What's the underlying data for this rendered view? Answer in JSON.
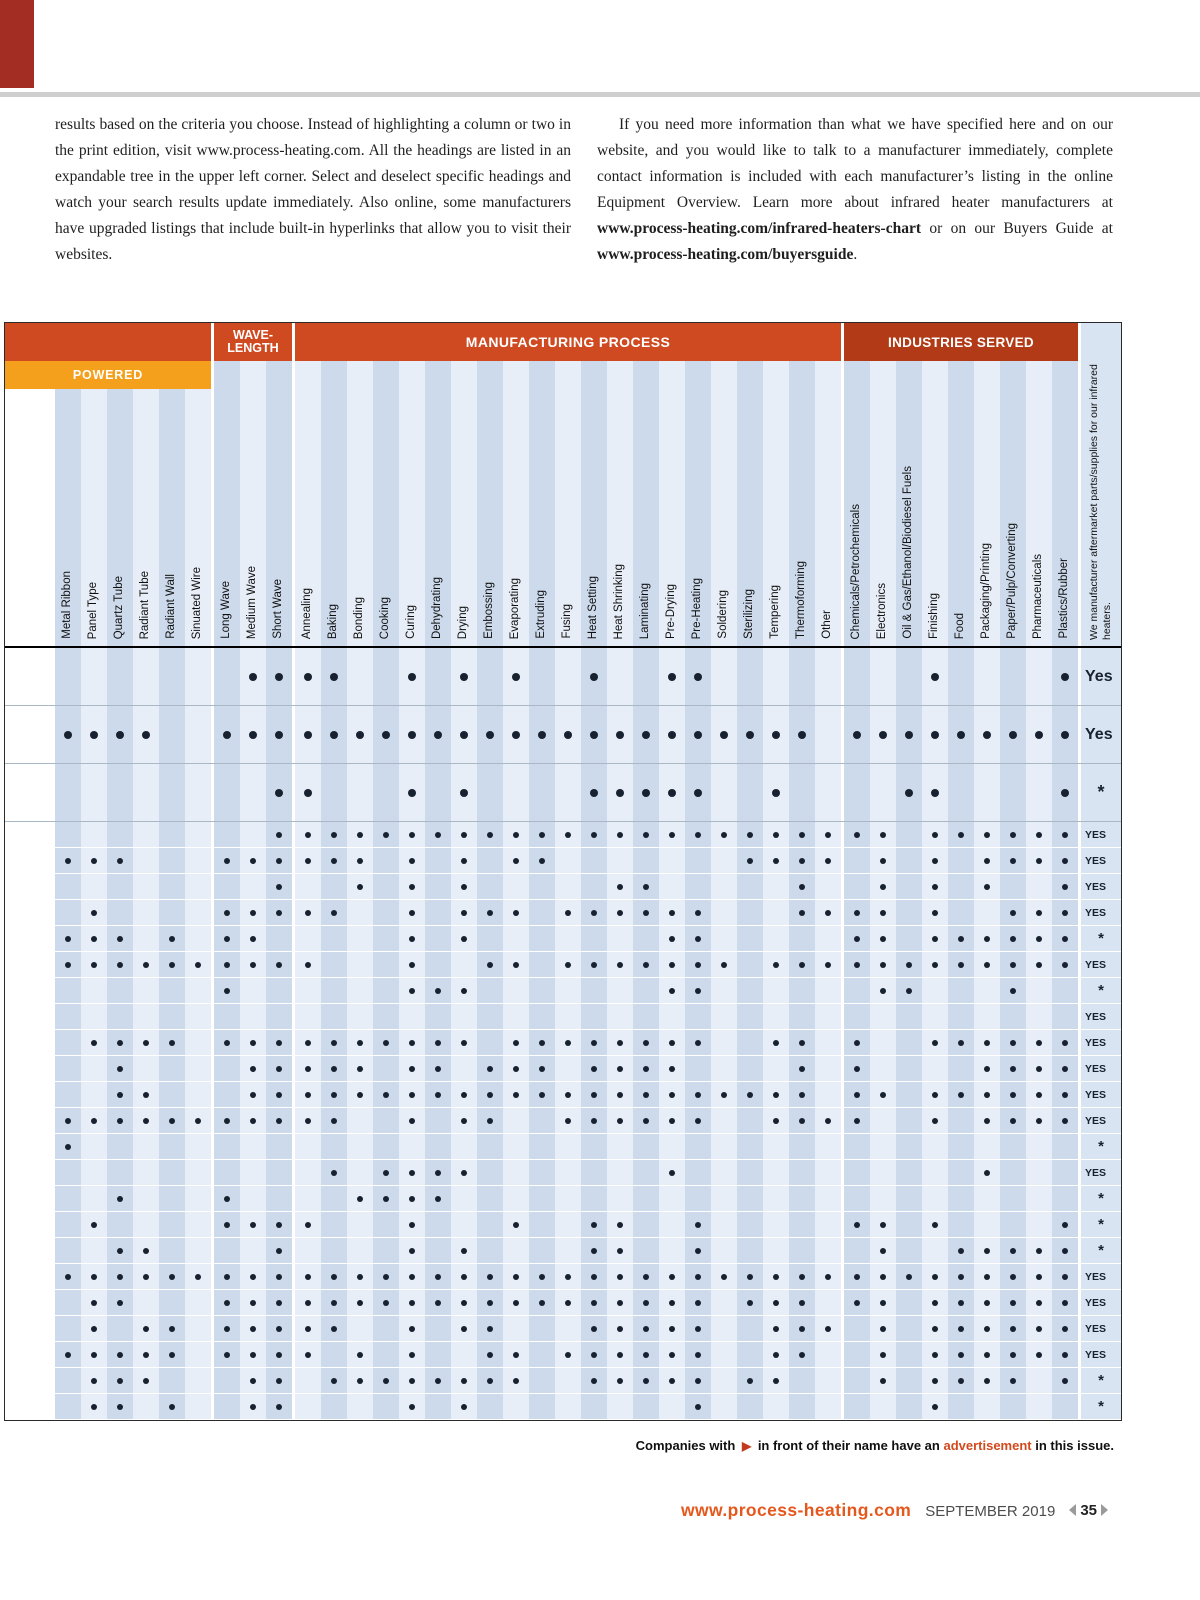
{
  "page": {
    "intro_left": "results based on the criteria you choose. Instead of highlighting a column or two in the print edition, visit www.process-heating.com. All the headings are listed in an expandable tree in the upper left corner. Select and deselect specific headings and watch your search results update immediately. Also online, some manufacturers have upgraded listings that include built-in hyperlinks that allow you to visit their websites.",
    "intro_right_segments": [
      {
        "text": "If you need more information than what we have specified here and on our website, and you would like to talk to a manufacturer immediately, complete contact information is included with each manufacturer’s listing in the online Equipment Overview. Learn more about infrared heater manufacturers at ",
        "bold": false
      },
      {
        "text": "www.process-heating.com/infrared-heaters-chart",
        "bold": true
      },
      {
        "text": " or on our Buyers Guide at ",
        "bold": false
      },
      {
        "text": "www.process-heating.com/buyersguide",
        "bold": true
      },
      {
        "text": ".",
        "bold": false
      }
    ],
    "footnote": {
      "pre": "Companies with",
      "arrow": "▶",
      "mid": "in front of their name have an",
      "highlight": "advertisement",
      "post": "in this issue."
    },
    "footer": {
      "url": "www.process-heating.com",
      "issue": "SEPTEMBER 2019",
      "page_number": "35"
    }
  },
  "colors": {
    "band_orange": "#cf4a21",
    "band_dark_red": "#b23a16",
    "powered_amber": "#f4a01c",
    "stripe_dark": "#cddaeb",
    "stripe_light": "#e8eef7",
    "yes_column_bg": "#d9e4f2",
    "dot": "#17212f",
    "accent": "#d2491e",
    "corner_tab": "#a32d22"
  },
  "table": {
    "groups": [
      {
        "label": "POWERED",
        "columns": [
          "Metal Ribbon",
          "Panel Type",
          "Quartz Tube",
          "Radiant Tube",
          "Radiant Wall",
          "Sinuated Wire"
        ]
      },
      {
        "label": "WAVE-LENGTH",
        "columns": [
          "Long Wave",
          "Medium Wave",
          "Short Wave"
        ]
      },
      {
        "label": "MANUFACTURING PROCESS",
        "columns": [
          "Annealing",
          "Baking",
          "Bonding",
          "Cooking",
          "Curing",
          "Dehydrating",
          "Drying",
          "Embossing",
          "Evaporating",
          "Extruding",
          "Fusing",
          "Heat Setting",
          "Heat Shrinking",
          "Laminating",
          "Pre-Drying",
          "Pre-Heating",
          "Soldering",
          "Sterilizing",
          "Tempering",
          "Thermoforming",
          "Other"
        ]
      },
      {
        "label": "INDUSTRIES SERVED",
        "columns": [
          "Chemicals/Petrochemicals",
          "Electronics",
          "Oil & Gas/Ethanol/Biodiesel Fuels",
          "Finishing",
          "Food",
          "Packaging/Printing",
          "Paper/Pulp/Converting",
          "Pharmaceuticals",
          "Plastics/Rubber"
        ]
      }
    ],
    "aftermarket_header": "We manufacturer aftermarket parts/supplies for our infrared heaters.",
    "rows": [
      {
        "size": "large",
        "aftermarket": "Yes",
        "dots": [
          7,
          8,
          9,
          10,
          13,
          15,
          17,
          20,
          23,
          24,
          33,
          38
        ]
      },
      {
        "size": "large",
        "aftermarket": "Yes",
        "dots": [
          0,
          1,
          2,
          3,
          6,
          7,
          8,
          9,
          10,
          11,
          12,
          13,
          14,
          15,
          16,
          17,
          18,
          19,
          20,
          21,
          22,
          23,
          24,
          25,
          26,
          27,
          28,
          30,
          31,
          32,
          33,
          34,
          35,
          36,
          37,
          38
        ]
      },
      {
        "size": "large",
        "aftermarket": "*",
        "dots": [
          8,
          9,
          13,
          15,
          20,
          21,
          22,
          23,
          24,
          27,
          32,
          33,
          38
        ]
      },
      {
        "size": "small",
        "aftermarket": "YES",
        "dots": [
          8,
          9,
          10,
          11,
          12,
          13,
          14,
          15,
          16,
          17,
          18,
          19,
          20,
          21,
          22,
          23,
          24,
          25,
          26,
          27,
          28,
          29,
          30,
          31,
          33,
          34,
          35,
          36,
          37,
          38
        ]
      },
      {
        "size": "small",
        "aftermarket": "YES",
        "dots": [
          0,
          1,
          2,
          6,
          7,
          8,
          9,
          10,
          11,
          13,
          15,
          17,
          18,
          26,
          27,
          28,
          29,
          31,
          33,
          35,
          36,
          37,
          38
        ]
      },
      {
        "size": "small",
        "aftermarket": "YES",
        "dots": [
          8,
          11,
          13,
          15,
          21,
          22,
          28,
          31,
          33,
          35,
          38
        ]
      },
      {
        "size": "small",
        "aftermarket": "YES",
        "dots": [
          1,
          6,
          7,
          8,
          9,
          10,
          13,
          15,
          16,
          17,
          19,
          20,
          21,
          22,
          23,
          24,
          28,
          29,
          30,
          31,
          33,
          36,
          37,
          38
        ]
      },
      {
        "size": "small",
        "aftermarket": "*",
        "dots": [
          0,
          1,
          2,
          4,
          6,
          7,
          13,
          15,
          23,
          24,
          30,
          31,
          33,
          34,
          35,
          36,
          37,
          38
        ]
      },
      {
        "size": "small",
        "aftermarket": "YES",
        "dots": [
          0,
          1,
          2,
          3,
          4,
          5,
          6,
          7,
          8,
          9,
          13,
          16,
          17,
          19,
          20,
          21,
          22,
          23,
          24,
          25,
          27,
          28,
          29,
          30,
          31,
          32,
          33,
          34,
          35,
          36,
          37,
          38
        ]
      },
      {
        "size": "small",
        "aftermarket": "*",
        "dots": [
          6,
          13,
          14,
          15,
          23,
          24,
          31,
          32,
          36
        ]
      },
      {
        "size": "small",
        "aftermarket": "YES",
        "dots": []
      },
      {
        "size": "small",
        "aftermarket": "YES",
        "dots": [
          1,
          2,
          3,
          4,
          6,
          7,
          8,
          9,
          10,
          11,
          12,
          13,
          14,
          15,
          17,
          18,
          19,
          20,
          21,
          22,
          23,
          24,
          27,
          28,
          30,
          33,
          34,
          35,
          36,
          37,
          38
        ]
      },
      {
        "size": "small",
        "aftermarket": "YES",
        "dots": [
          2,
          7,
          8,
          9,
          10,
          11,
          13,
          14,
          16,
          17,
          18,
          20,
          21,
          22,
          23,
          28,
          30,
          35,
          36,
          37,
          38
        ]
      },
      {
        "size": "small",
        "aftermarket": "YES",
        "dots": [
          2,
          3,
          7,
          8,
          9,
          10,
          11,
          12,
          13,
          14,
          15,
          16,
          17,
          18,
          19,
          20,
          21,
          22,
          23,
          24,
          25,
          26,
          27,
          28,
          30,
          31,
          33,
          34,
          35,
          36,
          37,
          38
        ]
      },
      {
        "size": "small",
        "aftermarket": "YES",
        "dots": [
          0,
          1,
          2,
          3,
          4,
          5,
          6,
          7,
          8,
          9,
          10,
          13,
          15,
          16,
          19,
          20,
          21,
          22,
          23,
          24,
          27,
          28,
          29,
          30,
          33,
          35,
          36,
          37,
          38
        ]
      },
      {
        "size": "small",
        "aftermarket": "*",
        "dots": [
          0
        ]
      },
      {
        "size": "small",
        "aftermarket": "YES",
        "dots": [
          10,
          12,
          13,
          14,
          15,
          23,
          35
        ]
      },
      {
        "size": "small",
        "aftermarket": "*",
        "dots": [
          2,
          6,
          11,
          12,
          13,
          14
        ]
      },
      {
        "size": "small",
        "aftermarket": "*",
        "dots": [
          1,
          6,
          7,
          8,
          9,
          13,
          17,
          20,
          21,
          24,
          30,
          31,
          33,
          38
        ]
      },
      {
        "size": "small",
        "aftermarket": "*",
        "dots": [
          2,
          3,
          8,
          13,
          15,
          20,
          21,
          24,
          31,
          34,
          35,
          36,
          37,
          38
        ]
      },
      {
        "size": "small",
        "aftermarket": "YES",
        "dots": [
          0,
          1,
          2,
          3,
          4,
          5,
          6,
          7,
          8,
          9,
          10,
          11,
          12,
          13,
          14,
          15,
          16,
          17,
          18,
          19,
          20,
          21,
          22,
          23,
          24,
          25,
          26,
          27,
          28,
          29,
          30,
          31,
          32,
          33,
          34,
          35,
          36,
          37,
          38
        ]
      },
      {
        "size": "small",
        "aftermarket": "YES",
        "dots": [
          1,
          2,
          6,
          7,
          8,
          9,
          10,
          11,
          12,
          13,
          14,
          15,
          16,
          17,
          18,
          19,
          20,
          21,
          22,
          23,
          24,
          26,
          27,
          28,
          30,
          31,
          33,
          34,
          35,
          36,
          37,
          38
        ]
      },
      {
        "size": "small",
        "aftermarket": "YES",
        "dots": [
          1,
          3,
          4,
          6,
          7,
          8,
          9,
          10,
          13,
          15,
          16,
          20,
          21,
          22,
          23,
          24,
          27,
          28,
          29,
          31,
          33,
          34,
          35,
          36,
          37,
          38
        ]
      },
      {
        "size": "small",
        "aftermarket": "YES",
        "dots": [
          0,
          1,
          2,
          3,
          4,
          6,
          7,
          8,
          9,
          11,
          13,
          16,
          17,
          19,
          20,
          21,
          22,
          23,
          24,
          27,
          28,
          31,
          33,
          34,
          35,
          36,
          37,
          38
        ]
      },
      {
        "size": "small",
        "aftermarket": "*",
        "dots": [
          1,
          2,
          3,
          7,
          8,
          10,
          11,
          12,
          13,
          14,
          15,
          16,
          17,
          20,
          21,
          22,
          23,
          24,
          26,
          27,
          31,
          33,
          34,
          35,
          36,
          38
        ]
      },
      {
        "size": "small",
        "aftermarket": "*",
        "dots": [
          1,
          2,
          4,
          7,
          8,
          13,
          15,
          24,
          33
        ]
      }
    ]
  }
}
